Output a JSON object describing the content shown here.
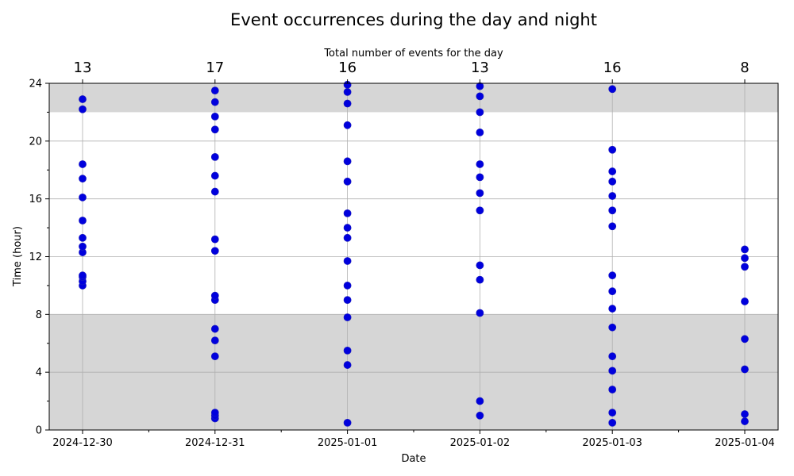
{
  "chart_data": {
    "type": "scatter",
    "title": "Event occurrences during the day and night",
    "top_axis_label": "Total number of events for the day",
    "xlabel": "Date",
    "ylabel": "Time (hour)",
    "ylim": [
      0,
      24
    ],
    "y_major_ticks": [
      0,
      4,
      8,
      12,
      16,
      20,
      24
    ],
    "y_minor_ticks": [
      2,
      6,
      10,
      14,
      18,
      22
    ],
    "grid": true,
    "shaded_bands": [
      {
        "from": 0,
        "to": 8
      },
      {
        "from": 22,
        "to": 24
      }
    ],
    "colors": {
      "points": "#0000dd",
      "band": "#d6d6d6",
      "grid": "#b0b0b0"
    },
    "categories": [
      "2024-12-30",
      "2024-12-31",
      "2025-01-01",
      "2025-01-02",
      "2025-01-03",
      "2025-01-04"
    ],
    "daily_counts": [
      "13",
      "17",
      "16",
      "13",
      "16",
      "8"
    ],
    "series": [
      {
        "points": [
          {
            "x": "2024-12-30",
            "hours": [
              10.0,
              10.3,
              10.6,
              10.7,
              12.3,
              12.7,
              13.3,
              14.5,
              16.1,
              17.4,
              18.4,
              22.2,
              22.9
            ]
          },
          {
            "x": "2024-12-31",
            "hours": [
              0.8,
              1.0,
              1.2,
              5.1,
              6.2,
              7.0,
              9.0,
              9.3,
              12.4,
              13.2,
              16.5,
              17.6,
              18.9,
              20.8,
              21.7,
              22.7,
              23.5
            ]
          },
          {
            "x": "2025-01-01",
            "hours": [
              0.5,
              4.5,
              5.5,
              7.8,
              9.0,
              10.0,
              11.7,
              13.3,
              14.0,
              15.0,
              17.2,
              18.6,
              21.1,
              22.6,
              23.4,
              23.9
            ]
          },
          {
            "x": "2025-01-02",
            "hours": [
              1.0,
              2.0,
              8.1,
              10.4,
              11.4,
              15.2,
              16.4,
              17.5,
              18.4,
              20.6,
              22.0,
              23.1,
              23.8
            ]
          },
          {
            "x": "2025-01-03",
            "hours": [
              0.5,
              1.2,
              2.8,
              4.1,
              5.1,
              7.1,
              8.4,
              9.6,
              10.7,
              14.1,
              15.2,
              16.2,
              17.2,
              17.9,
              19.4,
              23.6
            ]
          },
          {
            "x": "2025-01-04",
            "hours": [
              0.6,
              1.1,
              4.2,
              6.3,
              8.9,
              11.3,
              11.9,
              12.5
            ]
          }
        ]
      }
    ]
  }
}
